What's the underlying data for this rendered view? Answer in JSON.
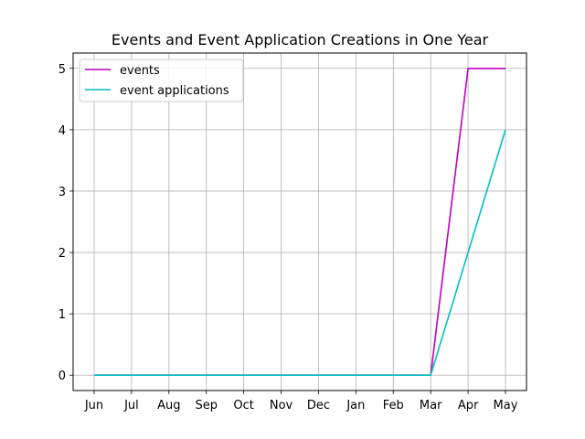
{
  "chart_data": {
    "type": "line",
    "title": "Events and Event Application Creations in One Year",
    "xlabel": "",
    "ylabel": "",
    "categories": [
      "Jun",
      "Jul",
      "Aug",
      "Sep",
      "Oct",
      "Nov",
      "Dec",
      "Jan",
      "Feb",
      "Mar",
      "Apr",
      "May"
    ],
    "series": [
      {
        "name": "events",
        "color": "#bf00bf",
        "values": [
          0,
          0,
          0,
          0,
          0,
          0,
          0,
          0,
          0,
          0,
          5,
          5
        ]
      },
      {
        "name": "event applications",
        "color": "#00bfbf",
        "values": [
          0,
          0,
          0,
          0,
          0,
          0,
          0,
          0,
          0,
          0,
          2,
          4
        ]
      }
    ],
    "ylim": [
      -0.25,
      5.25
    ],
    "yticks": [
      0,
      1,
      2,
      3,
      4,
      5
    ],
    "grid": true,
    "legend_position": "top-left"
  }
}
